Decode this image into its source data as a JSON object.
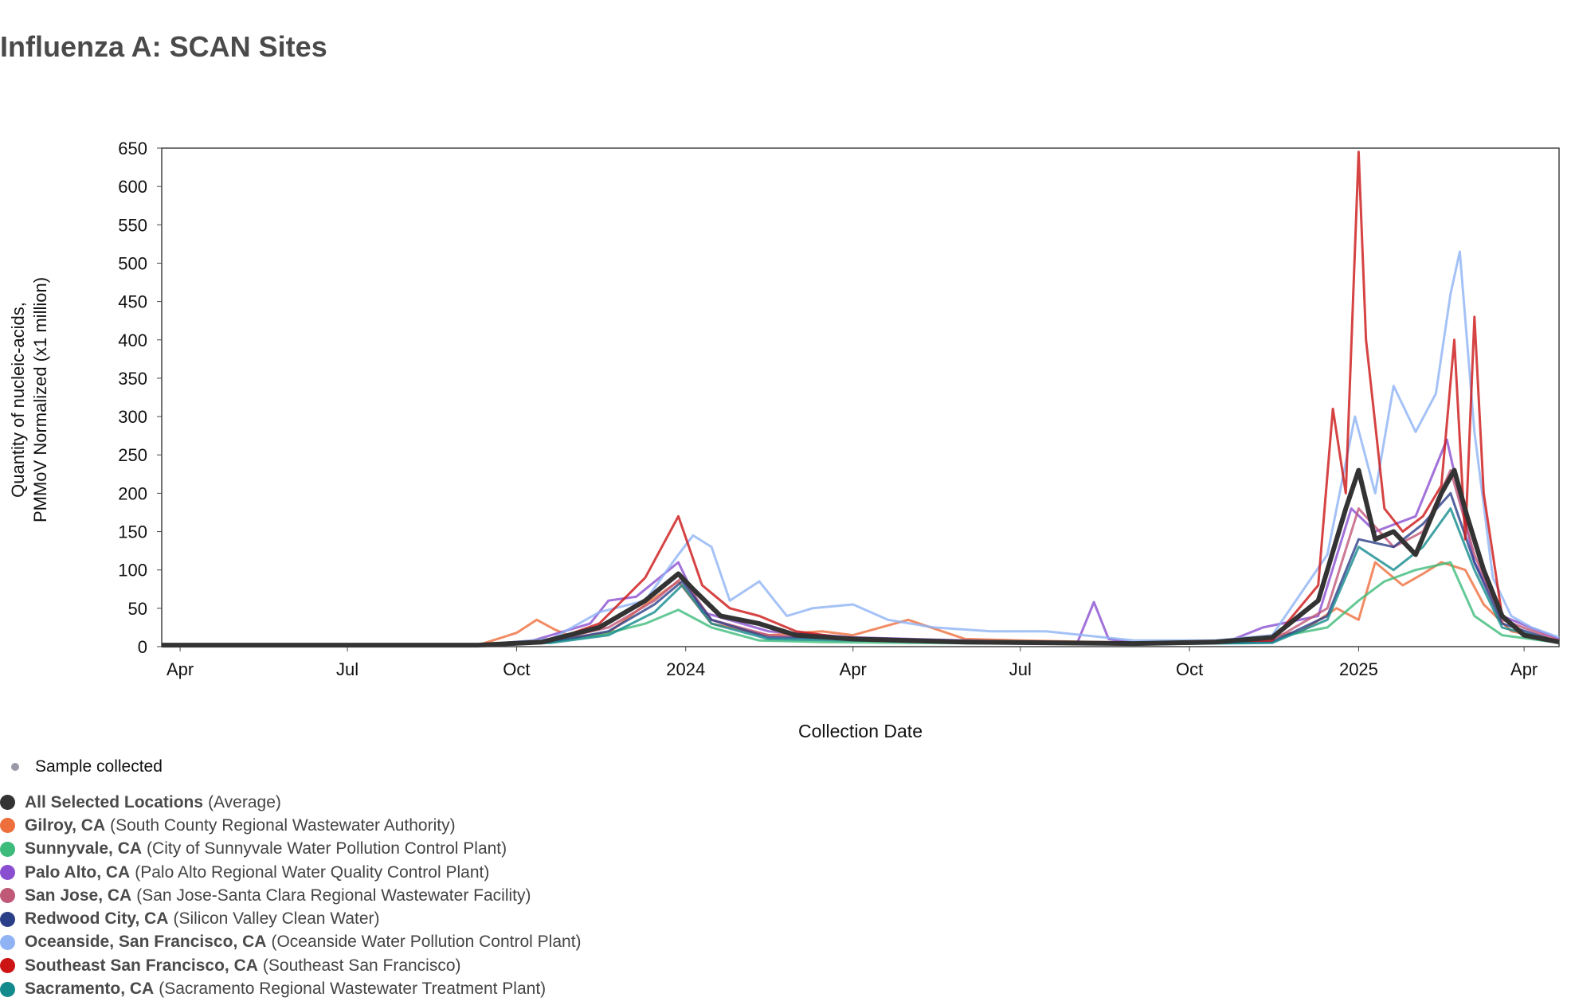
{
  "title": "Influenza A: SCAN Sites",
  "legend_top": {
    "label": "Sample collected",
    "color": "#999aa8"
  },
  "legend": [
    {
      "name": "All Selected Locations",
      "detail": "(Average)",
      "color": "#333333"
    },
    {
      "name": "Gilroy, CA",
      "detail": "(South County Regional Wastewater Authority)",
      "color": "#ee6e3c"
    },
    {
      "name": "Sunnyvale, CA",
      "detail": "(City of Sunnyvale Water Pollution Control Plant)",
      "color": "#3dbb7a"
    },
    {
      "name": "Palo Alto, CA",
      "detail": "(Palo Alto Regional Water Quality Control Plant)",
      "color": "#8a4fd0"
    },
    {
      "name": "San Jose, CA",
      "detail": "(San Jose-Santa Clara Regional Wastewater Facility)",
      "color": "#c05878"
    },
    {
      "name": "Redwood City, CA",
      "detail": "(Silicon Valley Clean Water)",
      "color": "#2b3f88"
    },
    {
      "name": "Oceanside, San Francisco, CA",
      "detail": "(Oceanside Water Pollution Control Plant)",
      "color": "#8fb3f5"
    },
    {
      "name": "Southeast San Francisco, CA",
      "detail": "(Southeast San Francisco)",
      "color": "#cc1414"
    },
    {
      "name": "Sacramento, CA",
      "detail": "(Sacramento Regional Wastewater Treatment Plant)",
      "color": "#138a8c"
    }
  ],
  "chart_data": {
    "type": "line",
    "title": "Influenza A: SCAN Sites",
    "xlabel": "Collection Date",
    "ylabel": "Quantity of nucleic-acids, PMMoV Normalized (x1 million)",
    "ylabel_lines": [
      "Quantity of nucleic-acids,",
      "PMMoV Normalized (x1 million)"
    ],
    "ylim": [
      0,
      650
    ],
    "yticks": [
      0,
      50,
      100,
      150,
      200,
      250,
      300,
      350,
      400,
      450,
      500,
      550,
      600,
      650
    ],
    "xlim": [
      "2023-03-22",
      "2025-04-20"
    ],
    "xticks": [
      {
        "date": "2023-04-01",
        "label": "Apr"
      },
      {
        "date": "2023-07-01",
        "label": "Jul"
      },
      {
        "date": "2023-10-01",
        "label": "Oct"
      },
      {
        "date": "2024-01-01",
        "label": "2024"
      },
      {
        "date": "2024-04-01",
        "label": "Apr"
      },
      {
        "date": "2024-07-01",
        "label": "Jul"
      },
      {
        "date": "2024-10-01",
        "label": "Oct"
      },
      {
        "date": "2025-01-01",
        "label": "2025"
      },
      {
        "date": "2025-04-01",
        "label": "Apr"
      }
    ],
    "grid": false,
    "legend_position": "bottom-left",
    "series": [
      {
        "name": "Gilroy, CA",
        "color": "#ee6e3c",
        "x": [
          "2023-03-22",
          "2023-09-10",
          "2023-10-01",
          "2023-10-12",
          "2023-10-22",
          "2023-11-01",
          "2023-11-20",
          "2023-12-10",
          "2023-12-28",
          "2024-01-15",
          "2024-02-15",
          "2024-03-15",
          "2024-04-01",
          "2024-05-01",
          "2024-06-01",
          "2024-07-01",
          "2024-09-01",
          "2024-11-01",
          "2024-12-01",
          "2024-12-20",
          "2025-01-01",
          "2025-01-10",
          "2025-01-25",
          "2025-02-05",
          "2025-02-15",
          "2025-02-28",
          "2025-03-10",
          "2025-03-25",
          "2025-04-20"
        ],
        "values": [
          2,
          2,
          18,
          35,
          22,
          12,
          18,
          55,
          85,
          30,
          15,
          20,
          15,
          35,
          10,
          8,
          5,
          8,
          20,
          50,
          35,
          110,
          80,
          95,
          110,
          100,
          55,
          20,
          8
        ]
      },
      {
        "name": "Sunnyvale, CA",
        "color": "#3dbb7a",
        "x": [
          "2023-03-22",
          "2023-09-10",
          "2023-10-15",
          "2023-11-15",
          "2023-12-10",
          "2023-12-28",
          "2024-01-15",
          "2024-02-10",
          "2024-03-15",
          "2024-05-01",
          "2024-07-01",
          "2024-09-01",
          "2024-11-01",
          "2024-12-15",
          "2025-01-01",
          "2025-01-15",
          "2025-02-01",
          "2025-02-20",
          "2025-03-05",
          "2025-03-20",
          "2025-04-20"
        ],
        "values": [
          2,
          2,
          5,
          15,
          30,
          48,
          25,
          8,
          6,
          5,
          4,
          3,
          5,
          25,
          60,
          85,
          100,
          110,
          40,
          15,
          5
        ]
      },
      {
        "name": "Palo Alto, CA",
        "color": "#8a4fd0",
        "x": [
          "2023-03-22",
          "2023-09-10",
          "2023-10-10",
          "2023-11-10",
          "2023-11-20",
          "2023-12-05",
          "2023-12-28",
          "2024-01-10",
          "2024-02-15",
          "2024-04-01",
          "2024-06-01",
          "2024-08-01",
          "2024-08-10",
          "2024-08-18",
          "2024-09-01",
          "2024-10-20",
          "2024-11-10",
          "2024-12-10",
          "2024-12-28",
          "2025-01-10",
          "2025-02-01",
          "2025-02-18",
          "2025-03-05",
          "2025-03-20",
          "2025-04-20"
        ],
        "values": [
          2,
          2,
          8,
          30,
          60,
          65,
          110,
          45,
          20,
          12,
          8,
          5,
          58,
          10,
          5,
          5,
          25,
          40,
          180,
          150,
          170,
          270,
          110,
          40,
          10
        ]
      },
      {
        "name": "San Jose, CA",
        "color": "#c05878",
        "x": [
          "2023-03-22",
          "2023-09-10",
          "2023-10-20",
          "2023-11-20",
          "2023-12-15",
          "2023-12-30",
          "2024-01-15",
          "2024-02-15",
          "2024-04-01",
          "2024-06-01",
          "2024-09-01",
          "2024-11-15",
          "2024-12-15",
          "2025-01-01",
          "2025-01-20",
          "2025-02-05",
          "2025-02-20",
          "2025-03-05",
          "2025-03-20",
          "2025-04-20"
        ],
        "values": [
          2,
          2,
          8,
          25,
          60,
          90,
          35,
          15,
          10,
          6,
          4,
          8,
          50,
          180,
          130,
          150,
          230,
          120,
          35,
          8
        ]
      },
      {
        "name": "Redwood City, CA",
        "color": "#2b3f88",
        "x": [
          "2023-03-22",
          "2023-09-10",
          "2023-10-20",
          "2023-11-20",
          "2023-12-15",
          "2023-12-30",
          "2024-01-15",
          "2024-02-15",
          "2024-04-01",
          "2024-06-01",
          "2024-09-01",
          "2024-11-15",
          "2024-12-15",
          "2025-01-01",
          "2025-01-20",
          "2025-02-05",
          "2025-02-20",
          "2025-03-05",
          "2025-03-20",
          "2025-04-20"
        ],
        "values": [
          2,
          2,
          6,
          20,
          55,
          85,
          35,
          12,
          10,
          6,
          3,
          6,
          40,
          140,
          130,
          160,
          200,
          110,
          30,
          6
        ]
      },
      {
        "name": "Oceanside, San Francisco, CA",
        "color": "#8fb3f5",
        "x": [
          "2023-03-22",
          "2023-09-10",
          "2023-10-20",
          "2023-11-15",
          "2023-12-10",
          "2023-12-28",
          "2024-01-05",
          "2024-01-15",
          "2024-01-25",
          "2024-02-10",
          "2024-02-25",
          "2024-03-10",
          "2024-04-01",
          "2024-04-20",
          "2024-05-15",
          "2024-06-15",
          "2024-07-15",
          "2024-09-01",
          "2024-10-15",
          "2024-11-15",
          "2024-12-15",
          "2024-12-30",
          "2025-01-10",
          "2025-01-20",
          "2025-02-01",
          "2025-02-12",
          "2025-02-20",
          "2025-02-25",
          "2025-03-05",
          "2025-03-15",
          "2025-03-25",
          "2025-04-05",
          "2025-04-20"
        ],
        "values": [
          2,
          2,
          10,
          45,
          60,
          120,
          145,
          130,
          60,
          85,
          40,
          50,
          55,
          35,
          25,
          20,
          20,
          8,
          8,
          15,
          120,
          300,
          200,
          340,
          280,
          330,
          460,
          515,
          280,
          90,
          40,
          25,
          12
        ]
      },
      {
        "name": "Southeast San Francisco, CA",
        "color": "#cc1414",
        "x": [
          "2023-03-22",
          "2023-09-10",
          "2023-10-20",
          "2023-11-15",
          "2023-12-10",
          "2023-12-28",
          "2024-01-10",
          "2024-01-25",
          "2024-02-10",
          "2024-03-01",
          "2024-04-01",
          "2024-06-01",
          "2024-09-01",
          "2024-11-15",
          "2024-12-10",
          "2024-12-18",
          "2024-12-25",
          "2025-01-01",
          "2025-01-05",
          "2025-01-15",
          "2025-01-25",
          "2025-02-05",
          "2025-02-15",
          "2025-02-22",
          "2025-02-28",
          "2025-03-05",
          "2025-03-10",
          "2025-03-20",
          "2025-04-01",
          "2025-04-20"
        ],
        "values": [
          2,
          2,
          8,
          30,
          90,
          170,
          80,
          50,
          40,
          20,
          10,
          6,
          4,
          8,
          80,
          310,
          200,
          645,
          400,
          180,
          150,
          170,
          210,
          400,
          140,
          430,
          200,
          40,
          15,
          8
        ]
      },
      {
        "name": "Sacramento, CA",
        "color": "#138a8c",
        "x": [
          "2023-03-22",
          "2023-09-10",
          "2023-10-20",
          "2023-11-20",
          "2023-12-15",
          "2023-12-30",
          "2024-01-15",
          "2024-02-15",
          "2024-04-01",
          "2024-06-01",
          "2024-09-01",
          "2024-11-15",
          "2024-12-15",
          "2025-01-01",
          "2025-01-20",
          "2025-02-05",
          "2025-02-20",
          "2025-03-05",
          "2025-03-20",
          "2025-04-20"
        ],
        "values": [
          2,
          2,
          5,
          15,
          45,
          80,
          30,
          10,
          8,
          5,
          3,
          5,
          35,
          130,
          100,
          130,
          180,
          100,
          25,
          6
        ]
      },
      {
        "name": "All Selected Locations",
        "color": "#333333",
        "x": [
          "2023-03-22",
          "2023-09-10",
          "2023-10-15",
          "2023-11-15",
          "2023-12-10",
          "2023-12-28",
          "2024-01-05",
          "2024-01-20",
          "2024-02-10",
          "2024-03-01",
          "2024-04-01",
          "2024-06-01",
          "2024-09-01",
          "2024-10-15",
          "2024-11-15",
          "2024-12-10",
          "2024-12-25",
          "2025-01-01",
          "2025-01-10",
          "2025-01-20",
          "2025-02-01",
          "2025-02-15",
          "2025-02-22",
          "2025-03-01",
          "2025-03-10",
          "2025-03-20",
          "2025-04-01",
          "2025-04-20"
        ],
        "values": [
          2,
          2,
          6,
          25,
          60,
          95,
          75,
          40,
          30,
          15,
          10,
          6,
          4,
          6,
          12,
          60,
          180,
          230,
          140,
          150,
          120,
          200,
          230,
          170,
          100,
          40,
          15,
          6
        ]
      }
    ]
  }
}
